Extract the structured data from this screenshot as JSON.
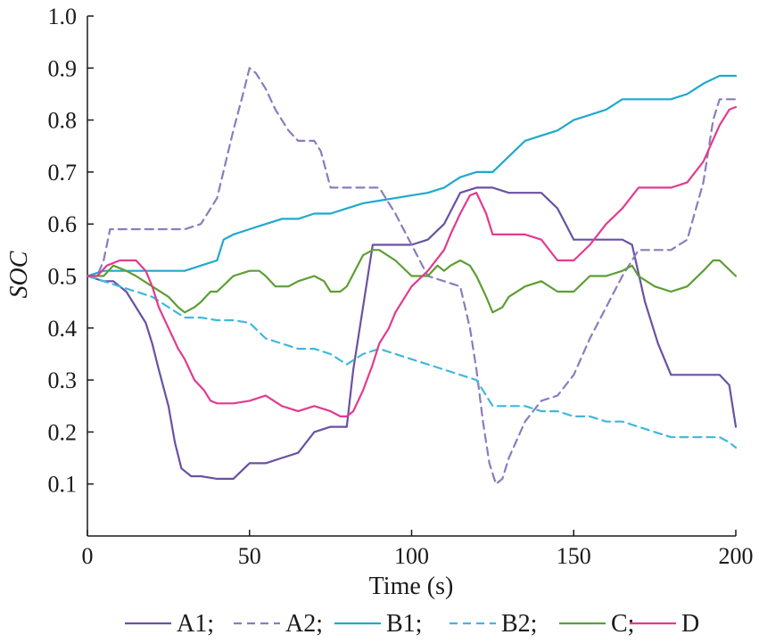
{
  "chart_data": {
    "type": "line",
    "xlabel": "Time (s)",
    "ylabel": "SOC",
    "xlim": [
      0,
      200
    ],
    "ylim": [
      0,
      1.0
    ],
    "x_ticks": [
      0,
      50,
      100,
      150,
      200
    ],
    "x_tick_labels": [
      "0",
      "50",
      "100",
      "150",
      "200"
    ],
    "y_ticks": [
      0.1,
      0.2,
      0.3,
      0.4,
      0.5,
      0.6,
      0.7,
      0.8,
      0.9,
      1.0
    ],
    "y_tick_labels": [
      "0.1",
      "0.2",
      "0.3",
      "0.4",
      "0.5",
      "0.6",
      "0.7",
      "0.8",
      "0.9",
      "1.0"
    ],
    "grid": false,
    "legend_position": "bottom",
    "series": [
      {
        "name": "A1",
        "legend_label": "A1;",
        "color": "#6a51a3",
        "dash": "solid",
        "x": [
          0,
          5,
          8,
          12,
          15,
          18,
          20,
          22,
          25,
          27,
          29,
          32,
          35,
          40,
          45,
          50,
          55,
          60,
          65,
          70,
          75,
          80,
          82,
          85,
          88,
          90,
          95,
          100,
          105,
          110,
          115,
          120,
          125,
          130,
          135,
          140,
          145,
          150,
          155,
          160,
          165,
          168,
          172,
          176,
          180,
          185,
          190,
          195,
          198,
          200
        ],
        "y": [
          0.5,
          0.49,
          0.49,
          0.47,
          0.44,
          0.41,
          0.37,
          0.32,
          0.25,
          0.18,
          0.13,
          0.115,
          0.115,
          0.11,
          0.11,
          0.14,
          0.14,
          0.15,
          0.16,
          0.2,
          0.21,
          0.21,
          0.32,
          0.44,
          0.56,
          0.56,
          0.56,
          0.56,
          0.57,
          0.6,
          0.66,
          0.67,
          0.67,
          0.66,
          0.66,
          0.66,
          0.63,
          0.57,
          0.57,
          0.57,
          0.57,
          0.56,
          0.45,
          0.37,
          0.31,
          0.31,
          0.31,
          0.31,
          0.29,
          0.21
        ]
      },
      {
        "name": "A2",
        "legend_label": "A2;",
        "color": "#8c7bbf",
        "dash": "dashed",
        "x": [
          0,
          3,
          5,
          7,
          10,
          20,
          30,
          35,
          40,
          45,
          48,
          50,
          52,
          55,
          58,
          62,
          65,
          70,
          72,
          75,
          80,
          85,
          90,
          95,
          100,
          105,
          110,
          115,
          118,
          120,
          122,
          124,
          126,
          128,
          130,
          135,
          140,
          145,
          150,
          155,
          160,
          165,
          170,
          175,
          180,
          185,
          190,
          193,
          195,
          200
        ],
        "y": [
          0.5,
          0.5,
          0.53,
          0.59,
          0.59,
          0.59,
          0.59,
          0.6,
          0.65,
          0.78,
          0.85,
          0.9,
          0.89,
          0.86,
          0.82,
          0.78,
          0.76,
          0.76,
          0.74,
          0.67,
          0.67,
          0.67,
          0.67,
          0.62,
          0.56,
          0.5,
          0.49,
          0.48,
          0.4,
          0.32,
          0.22,
          0.14,
          0.1,
          0.11,
          0.15,
          0.22,
          0.26,
          0.27,
          0.31,
          0.38,
          0.44,
          0.5,
          0.55,
          0.55,
          0.55,
          0.57,
          0.68,
          0.8,
          0.84,
          0.84
        ]
      },
      {
        "name": "B1",
        "legend_label": "B1;",
        "color": "#1fa9cf",
        "dash": "solid",
        "x": [
          0,
          5,
          10,
          20,
          30,
          35,
          40,
          42,
          45,
          50,
          55,
          60,
          65,
          70,
          75,
          80,
          85,
          90,
          95,
          100,
          105,
          110,
          115,
          120,
          125,
          130,
          135,
          140,
          145,
          150,
          155,
          160,
          165,
          170,
          175,
          180,
          185,
          190,
          195,
          200
        ],
        "y": [
          0.5,
          0.51,
          0.51,
          0.51,
          0.51,
          0.52,
          0.53,
          0.57,
          0.58,
          0.59,
          0.6,
          0.61,
          0.61,
          0.62,
          0.62,
          0.63,
          0.64,
          0.645,
          0.65,
          0.655,
          0.66,
          0.67,
          0.69,
          0.7,
          0.7,
          0.73,
          0.76,
          0.77,
          0.78,
          0.8,
          0.81,
          0.82,
          0.84,
          0.84,
          0.84,
          0.84,
          0.85,
          0.87,
          0.885,
          0.885
        ]
      },
      {
        "name": "B2",
        "legend_label": "B2;",
        "color": "#3fb8dd",
        "dash": "dashed",
        "x": [
          0,
          5,
          10,
          15,
          20,
          25,
          30,
          35,
          40,
          45,
          50,
          55,
          60,
          65,
          70,
          75,
          80,
          85,
          90,
          95,
          100,
          105,
          110,
          115,
          120,
          125,
          130,
          135,
          140,
          145,
          150,
          155,
          160,
          165,
          170,
          175,
          180,
          185,
          190,
          195,
          198,
          200
        ],
        "y": [
          0.5,
          0.49,
          0.48,
          0.47,
          0.46,
          0.44,
          0.42,
          0.42,
          0.415,
          0.415,
          0.41,
          0.38,
          0.37,
          0.36,
          0.36,
          0.35,
          0.33,
          0.35,
          0.36,
          0.35,
          0.34,
          0.33,
          0.32,
          0.31,
          0.3,
          0.25,
          0.25,
          0.25,
          0.24,
          0.24,
          0.23,
          0.23,
          0.22,
          0.22,
          0.21,
          0.2,
          0.19,
          0.19,
          0.19,
          0.19,
          0.18,
          0.17
        ]
      },
      {
        "name": "C",
        "legend_label": "C;",
        "color": "#5d9e33",
        "dash": "solid",
        "x": [
          0,
          5,
          8,
          12,
          15,
          20,
          25,
          28,
          30,
          33,
          35,
          38,
          40,
          45,
          50,
          53,
          55,
          58,
          62,
          65,
          70,
          73,
          75,
          78,
          80,
          85,
          88,
          90,
          95,
          100,
          105,
          108,
          110,
          112,
          115,
          118,
          120,
          123,
          125,
          128,
          130,
          135,
          140,
          145,
          150,
          155,
          160,
          165,
          168,
          170,
          175,
          180,
          185,
          190,
          193,
          195,
          200
        ],
        "y": [
          0.5,
          0.5,
          0.52,
          0.51,
          0.5,
          0.48,
          0.46,
          0.44,
          0.43,
          0.44,
          0.45,
          0.47,
          0.47,
          0.5,
          0.51,
          0.51,
          0.5,
          0.48,
          0.48,
          0.49,
          0.5,
          0.49,
          0.47,
          0.47,
          0.48,
          0.54,
          0.55,
          0.55,
          0.53,
          0.5,
          0.5,
          0.52,
          0.51,
          0.52,
          0.53,
          0.52,
          0.5,
          0.46,
          0.43,
          0.44,
          0.46,
          0.48,
          0.49,
          0.47,
          0.47,
          0.5,
          0.5,
          0.51,
          0.52,
          0.5,
          0.48,
          0.47,
          0.48,
          0.51,
          0.53,
          0.53,
          0.5
        ]
      },
      {
        "name": "D",
        "legend_label": "D",
        "color": "#e23b8f",
        "dash": "solid",
        "x": [
          0,
          3,
          6,
          10,
          15,
          18,
          20,
          22,
          25,
          28,
          30,
          33,
          36,
          38,
          40,
          42,
          45,
          50,
          55,
          60,
          65,
          70,
          75,
          78,
          80,
          82,
          85,
          88,
          90,
          93,
          95,
          98,
          100,
          105,
          110,
          112,
          115,
          118,
          120,
          123,
          125,
          130,
          135,
          140,
          145,
          148,
          150,
          155,
          160,
          165,
          170,
          175,
          180,
          185,
          190,
          195,
          198,
          200
        ],
        "y": [
          0.5,
          0.5,
          0.52,
          0.53,
          0.53,
          0.51,
          0.48,
          0.44,
          0.4,
          0.36,
          0.34,
          0.3,
          0.28,
          0.26,
          0.255,
          0.255,
          0.255,
          0.26,
          0.27,
          0.25,
          0.24,
          0.25,
          0.24,
          0.23,
          0.23,
          0.24,
          0.28,
          0.33,
          0.37,
          0.4,
          0.43,
          0.46,
          0.48,
          0.51,
          0.55,
          0.58,
          0.62,
          0.655,
          0.66,
          0.62,
          0.58,
          0.58,
          0.58,
          0.57,
          0.53,
          0.53,
          0.53,
          0.56,
          0.6,
          0.63,
          0.67,
          0.67,
          0.67,
          0.68,
          0.72,
          0.79,
          0.82,
          0.825
        ]
      }
    ]
  }
}
